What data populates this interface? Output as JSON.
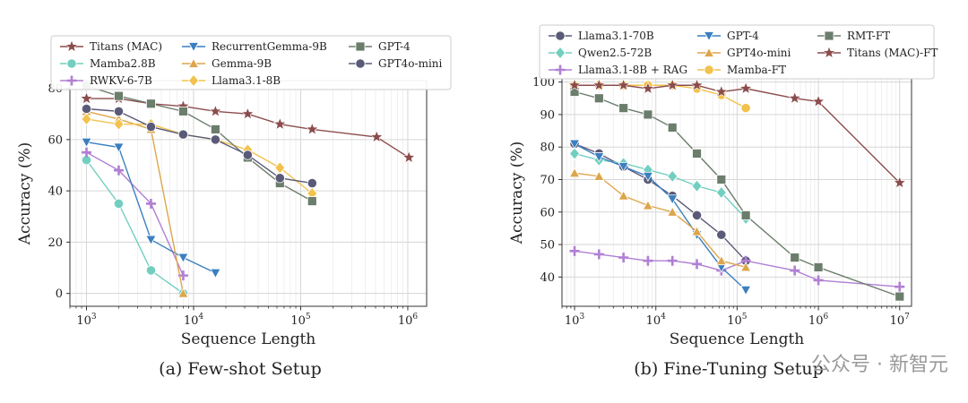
{
  "watermark": "公众号 · 新智元",
  "chart_data": [
    {
      "type": "line",
      "caption": "(a) Few-shot Setup",
      "xlabel": "Sequence Length",
      "ylabel": "Accuracy (%)",
      "xscale": "log",
      "xlim": [
        700,
        1500000
      ],
      "ylim": [
        -5,
        83
      ],
      "yticks": [
        0,
        20,
        40,
        60,
        80
      ],
      "xticks": [
        {
          "v": 1000,
          "label": "10^3"
        },
        {
          "v": 10000,
          "label": "10^4"
        },
        {
          "v": 100000,
          "label": "10^5"
        },
        {
          "v": 1000000,
          "label": "10^6"
        }
      ],
      "grid": true,
      "legend_position": "top",
      "legend_columns": 3,
      "series": [
        {
          "name": "Titans (MAC)",
          "color": "#8b4c4c",
          "marker": "star",
          "x": [
            1000,
            2000,
            4000,
            8000,
            16000,
            32000,
            64000,
            128000,
            512000,
            1024000
          ],
          "y": [
            76,
            76,
            74,
            73,
            71,
            70,
            66,
            64,
            61,
            53
          ]
        },
        {
          "name": "Mamba2.8B",
          "color": "#72cfc0",
          "marker": "circle",
          "x": [
            1000,
            2000,
            4000,
            8000
          ],
          "y": [
            52,
            35,
            9,
            0
          ]
        },
        {
          "name": "RWKV-6-7B",
          "color": "#b07fd4",
          "marker": "plus",
          "x": [
            1000,
            2000,
            4000,
            8000
          ],
          "y": [
            55,
            48,
            35,
            7
          ]
        },
        {
          "name": "RecurrentGemma-9B",
          "color": "#3b7fc0",
          "marker": "tri-down",
          "x": [
            1000,
            2000,
            4000,
            8000,
            16000
          ],
          "y": [
            59,
            57,
            21,
            14,
            8
          ]
        },
        {
          "name": "Gemma-9B",
          "color": "#dda64c",
          "marker": "tri-up",
          "x": [
            1000,
            2000,
            4000,
            8000
          ],
          "y": [
            71,
            68,
            64,
            0
          ]
        },
        {
          "name": "Llama3.1-8B",
          "color": "#f2c24c",
          "marker": "diamond",
          "x": [
            1000,
            2000,
            4000,
            8000,
            16000,
            32000,
            64000,
            128000
          ],
          "y": [
            68,
            66,
            66,
            62,
            60,
            56,
            49,
            39
          ]
        },
        {
          "name": "GPT-4",
          "color": "#6b7d6b",
          "marker": "square",
          "x": [
            1000,
            2000,
            4000,
            8000,
            16000,
            32000,
            64000,
            128000
          ],
          "y": [
            81,
            77,
            74,
            71,
            64,
            53,
            43,
            36
          ]
        },
        {
          "name": "GPT4o-mini",
          "color": "#5a5a78",
          "marker": "circle",
          "x": [
            1000,
            2000,
            4000,
            8000,
            16000,
            32000,
            64000,
            128000
          ],
          "y": [
            72,
            71,
            65,
            62,
            60,
            54,
            45,
            43
          ]
        }
      ]
    },
    {
      "type": "line",
      "caption": "(b) Fine-Tuning Setup",
      "xlabel": "Sequence Length",
      "ylabel": "Accuracy (%)",
      "xscale": "log",
      "xlim": [
        700,
        14000000
      ],
      "ylim": [
        31,
        101
      ],
      "yticks": [
        40,
        50,
        60,
        70,
        80,
        90,
        100
      ],
      "xticks": [
        {
          "v": 1000,
          "label": "10^3"
        },
        {
          "v": 10000,
          "label": "10^4"
        },
        {
          "v": 100000,
          "label": "10^5"
        },
        {
          "v": 1000000,
          "label": "10^6"
        },
        {
          "v": 10000000,
          "label": "10^7"
        }
      ],
      "grid": true,
      "legend_position": "top",
      "legend_columns": 3,
      "series": [
        {
          "name": "Llama3.1-70B",
          "color": "#5a5a78",
          "marker": "circle",
          "x": [
            1000,
            2000,
            4000,
            8000,
            16000,
            32000,
            64000,
            128000
          ],
          "y": [
            81,
            78,
            74,
            70,
            65,
            59,
            53,
            45
          ]
        },
        {
          "name": "Qwen2.5-72B",
          "color": "#72cfc0",
          "marker": "diamond",
          "x": [
            1000,
            2000,
            4000,
            8000,
            16000,
            32000,
            64000,
            128000
          ],
          "y": [
            78,
            76,
            75,
            73,
            71,
            68,
            66,
            58
          ]
        },
        {
          "name": "Llama3.1-8B + RAG",
          "color": "#b07fd4",
          "marker": "plus",
          "x": [
            1000,
            2000,
            4000,
            8000,
            16000,
            32000,
            64000,
            128000,
            512000,
            1000000,
            10000000
          ],
          "y": [
            48,
            47,
            46,
            45,
            45,
            44,
            42,
            45,
            42,
            39,
            37
          ]
        },
        {
          "name": "GPT-4",
          "color": "#3b7fc0",
          "marker": "tri-down",
          "x": [
            1000,
            2000,
            4000,
            8000,
            16000,
            32000,
            64000,
            128000
          ],
          "y": [
            81,
            77,
            74,
            71,
            64,
            53,
            43,
            36
          ]
        },
        {
          "name": "GPT4o-mini",
          "color": "#dda64c",
          "marker": "tri-up",
          "x": [
            1000,
            2000,
            4000,
            8000,
            16000,
            32000,
            64000,
            128000
          ],
          "y": [
            72,
            71,
            65,
            62,
            60,
            54,
            45,
            43
          ]
        },
        {
          "name": "Mamba-FT",
          "color": "#f2c24c",
          "marker": "circle",
          "x": [
            1000,
            2000,
            4000,
            8000,
            16000,
            32000,
            64000,
            128000
          ],
          "y": [
            99,
            99,
            99,
            99,
            99,
            98,
            96,
            92
          ]
        },
        {
          "name": "RMT-FT",
          "color": "#6b7d6b",
          "marker": "square",
          "x": [
            1000,
            2000,
            4000,
            8000,
            16000,
            32000,
            64000,
            128000,
            512000,
            1000000,
            10000000
          ],
          "y": [
            97,
            95,
            92,
            90,
            86,
            78,
            70,
            59,
            46,
            43,
            34
          ]
        },
        {
          "name": "Titans (MAC)-FT",
          "color": "#8b4c4c",
          "marker": "star",
          "x": [
            1000,
            2000,
            4000,
            8000,
            16000,
            32000,
            64000,
            128000,
            512000,
            1000000,
            10000000
          ],
          "y": [
            99,
            99,
            99,
            98,
            99,
            99,
            97,
            98,
            95,
            94,
            69
          ]
        }
      ]
    }
  ]
}
